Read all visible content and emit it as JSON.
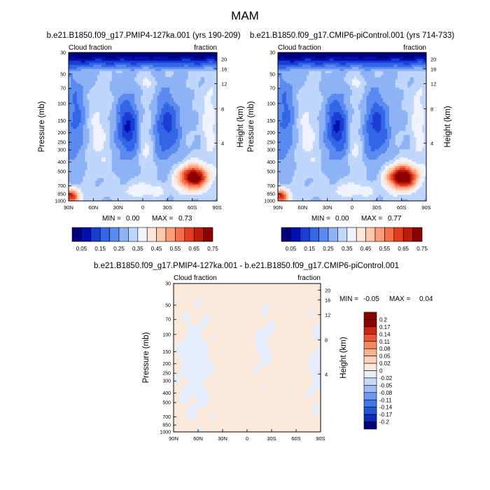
{
  "figure": {
    "title": "MAM"
  },
  "colors": {
    "cloud_scale": [
      "#00007f",
      "#0010b0",
      "#1a3ed4",
      "#3366e6",
      "#5b8af0",
      "#8eb3f5",
      "#c0d6fb",
      "#eef3ff",
      "#ffe6d6",
      "#ffc7ac",
      "#fe9e7b",
      "#f66e4b",
      "#e33d1f",
      "#be1b0b",
      "#8c0000"
    ],
    "diff_scale": [
      "#00007f",
      "#0b2bb3",
      "#2255d6",
      "#3d78ea",
      "#6d98f1",
      "#9bbaf6",
      "#c6d9fb",
      "#e4eefd",
      "#fde9d9",
      "#fdd2b8",
      "#fbb18d",
      "#f58861",
      "#e9553a",
      "#cc2712",
      "#8c0000"
    ]
  },
  "chart_data": [
    {
      "type": "heatmap",
      "title": "b.e21.B1850.f09_g17.PMIP4-127ka.001 (yrs 190-209)",
      "left_label": "Cloud fraction",
      "right_label": "fraction",
      "xlabel": "",
      "ylabel": "Pressure (mb)",
      "y2label": "Height (km)",
      "x_ticks": [
        "90N",
        "60N",
        "30N",
        "0",
        "30S",
        "60S",
        "90S"
      ],
      "y_ticks": [
        "30",
        "50",
        "70",
        "100",
        "150",
        "200",
        "250",
        "300",
        "400",
        "500",
        "700",
        "850",
        "1000"
      ],
      "y2_ticks": [
        "20",
        "16",
        "12",
        "8",
        "4"
      ],
      "stats": {
        "min_label": "MIN =",
        "min": "0.00",
        "max_label": "MAX =",
        "max": "0.73"
      },
      "colorbar_labels": [
        "0.05",
        "0.15",
        "0.25",
        "0.35",
        "0.45",
        "0.55",
        "0.65",
        "0.75"
      ],
      "vmin": 0.0,
      "vmax": 0.8,
      "peak": 0.73
    },
    {
      "type": "heatmap",
      "title": "b.e21.B1850.f09_g17.CMIP6-piControl.001 (yrs 714-733)",
      "left_label": "Cloud fraction",
      "right_label": "fraction",
      "xlabel": "",
      "ylabel": "Pressure (mb)",
      "y2label": "Height (km)",
      "x_ticks": [
        "90N",
        "60N",
        "30N",
        "0",
        "30S",
        "60S",
        "90S"
      ],
      "y_ticks": [
        "30",
        "50",
        "70",
        "100",
        "150",
        "200",
        "250",
        "300",
        "400",
        "500",
        "700",
        "850",
        "1000"
      ],
      "y2_ticks": [
        "20",
        "16",
        "12",
        "8",
        "4"
      ],
      "stats": {
        "min_label": "MIN =",
        "min": "0.00",
        "max_label": "MAX =",
        "max": "0.77"
      },
      "colorbar_labels": [
        "0.05",
        "0.15",
        "0.25",
        "0.35",
        "0.45",
        "0.55",
        "0.65",
        "0.75"
      ],
      "vmin": 0.0,
      "vmax": 0.8,
      "peak": 0.77
    },
    {
      "type": "heatmap",
      "title": "b.e21.B1850.f09_g17.PMIP4-127ka.001 - b.e21.B1850.f09_g17.CMIP6-piControl.001",
      "left_label": "Cloud fraction",
      "right_label": "fraction",
      "xlabel": "",
      "ylabel": "Pressure (mb)",
      "y2label": "Height (km)",
      "x_ticks": [
        "90N",
        "60N",
        "30N",
        "0",
        "30S",
        "60S",
        "90S"
      ],
      "y_ticks": [
        "30",
        "50",
        "70",
        "100",
        "150",
        "200",
        "250",
        "300",
        "400",
        "500",
        "700",
        "850",
        "1000"
      ],
      "y2_ticks": [
        "20",
        "16",
        "12",
        "8",
        "4"
      ],
      "stats": {
        "min_label": "MIN =",
        "min": "-0.05",
        "max_label": "MAX =",
        "max": "0.04"
      },
      "colorbar_labels": [
        "0.2",
        "0.17",
        "0.14",
        "0.11",
        "0.08",
        "0.05",
        "0.02",
        "0",
        "-0.02",
        "-0.05",
        "-0.08",
        "-0.11",
        "-0.14",
        "-0.17",
        "-0.2"
      ],
      "vmin": -0.2,
      "vmax": 0.2
    }
  ]
}
